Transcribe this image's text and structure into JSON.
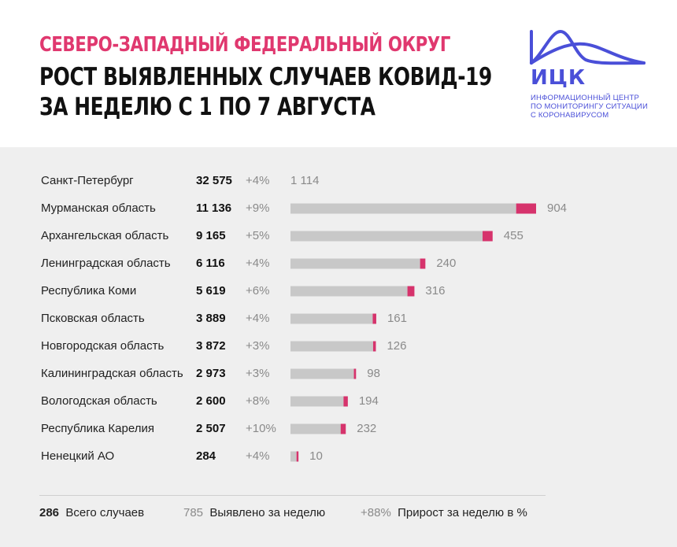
{
  "header": {
    "line1": "СЕВЕРО-ЗАПАДНЫЙ ФЕДЕРАЛЬНЫЙ ОКРУГ",
    "line2": "РОСТ ВЫЯВЛЕННЫХ СЛУЧАЕВ КОВИД-19",
    "line3": "ЗА НЕДЕЛЮ С 1 ПО 7 АВГУСТА"
  },
  "logo": {
    "abbr": "ИЦК",
    "text1": "Информационный центр",
    "text2": "по мониторингу ситуации",
    "text3": "с коронавирусом",
    "color": "#4a4fd8"
  },
  "colors": {
    "accent": "#d6336c",
    "bar": "#c8c8c8",
    "title_accent": "#e0386f"
  },
  "legend": {
    "total_sample": "286",
    "total_label": "Всего случаев",
    "week_sample": "785",
    "week_label": "Выявлено за неделю",
    "growth_sample": "+88%",
    "growth_label": "Прирост за неделю в %"
  },
  "chart_data": {
    "type": "bar",
    "orientation": "horizontal",
    "categories": [
      "Санкт-Петербург",
      "Мурманская область",
      "Архангельская область",
      "Ленинградская область",
      "Республика Коми",
      "Псковская область",
      "Новгородская область",
      "Калининградская область",
      "Вологодская область",
      "Республика Карелия",
      "Ненецкий АО"
    ],
    "totals": [
      32575,
      11136,
      9165,
      6116,
      5619,
      3889,
      3872,
      2973,
      2600,
      2507,
      284
    ],
    "totals_label": [
      "32 575",
      "11 136",
      "9 165",
      "6 116",
      "5 619",
      "3 889",
      "3 872",
      "2 973",
      "2 600",
      "2 507",
      "284"
    ],
    "growth_pct": [
      "+4%",
      "+9%",
      "+5%",
      "+4%",
      "+6%",
      "+4%",
      "+3%",
      "+3%",
      "+8%",
      "+10%",
      "+4%"
    ],
    "weekly_new": [
      1114,
      904,
      455,
      240,
      316,
      161,
      126,
      98,
      194,
      232,
      10
    ],
    "weekly_new_label": [
      "1 114",
      "904",
      "455",
      "240",
      "316",
      "161",
      "126",
      "98",
      "194",
      "232",
      "10"
    ],
    "bar_max": 11136
  }
}
